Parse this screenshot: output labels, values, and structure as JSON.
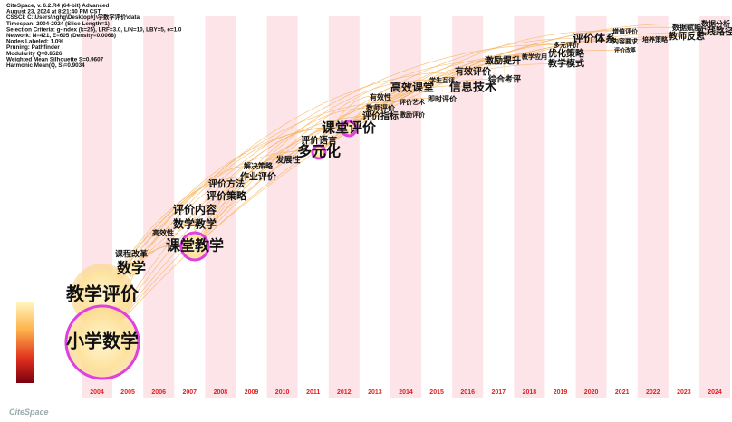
{
  "header": {
    "lines": [
      "CiteSpace, v. 6.2.R4 (64-bit) Advanced",
      "August 23, 2024 at 8:21:40 PM CST",
      "CSSCI: C:\\Users\\hghg\\Desktop\\小学数学评价\\data",
      "Timespan: 2004-2024 (Slice Length=1)",
      "Selection Criteria: g-index (k=25), LRF=3.0, L/N=10, LBY=5, e=1.0",
      "Network: N=421, E=605 (Density=0.0068)",
      "Nodes Labeled: 1.0%",
      "Pruning: Pathfinder",
      "Modularity Q=0.8526",
      "Weighted Mean Silhouette S=0.9607",
      "Harmonic Mean(Q, S)=0.9034"
    ]
  },
  "years": [
    "2004",
    "2005",
    "2006",
    "2007",
    "2008",
    "2009",
    "2010",
    "2011",
    "2012",
    "2013",
    "2014",
    "2015",
    "2016",
    "2017",
    "2018",
    "2019",
    "2020",
    "2021",
    "2022",
    "2023",
    "2024"
  ],
  "nodes": [
    {
      "label": "教学评价"
    },
    {
      "label": "小学数学"
    },
    {
      "label": "数学"
    },
    {
      "label": "课程改革"
    },
    {
      "label": "高效性"
    },
    {
      "label": "课堂教学"
    },
    {
      "label": "数学教学"
    },
    {
      "label": "评价内容"
    },
    {
      "label": "评价策略"
    },
    {
      "label": "评价方法"
    },
    {
      "label": "作业评价"
    },
    {
      "label": "解决策略"
    },
    {
      "label": "发展性"
    },
    {
      "label": "多元化"
    },
    {
      "label": "评价语言"
    },
    {
      "label": "课堂评价"
    },
    {
      "label": "评价指标"
    },
    {
      "label": "教师评价"
    },
    {
      "label": "有效性"
    },
    {
      "label": "高效课堂"
    },
    {
      "label": "评价艺术"
    },
    {
      "label": "激励评价"
    },
    {
      "label": "学生互评"
    },
    {
      "label": "即时评价"
    },
    {
      "label": "信息技术"
    },
    {
      "label": "有效评价"
    },
    {
      "label": "综合考评"
    },
    {
      "label": "激励提升"
    },
    {
      "label": "教学应用"
    },
    {
      "label": "优化策略"
    },
    {
      "label": "多元评价"
    },
    {
      "label": "教学模式"
    },
    {
      "label": "评价体系"
    },
    {
      "label": "增值评价"
    },
    {
      "label": "内容要求"
    },
    {
      "label": "评价改革"
    },
    {
      "label": "培养策略"
    },
    {
      "label": "教师反思"
    },
    {
      "label": "数据赋能"
    },
    {
      "label": "数据分析"
    },
    {
      "label": "实践路径"
    }
  ],
  "logo": "CiteSpace"
}
